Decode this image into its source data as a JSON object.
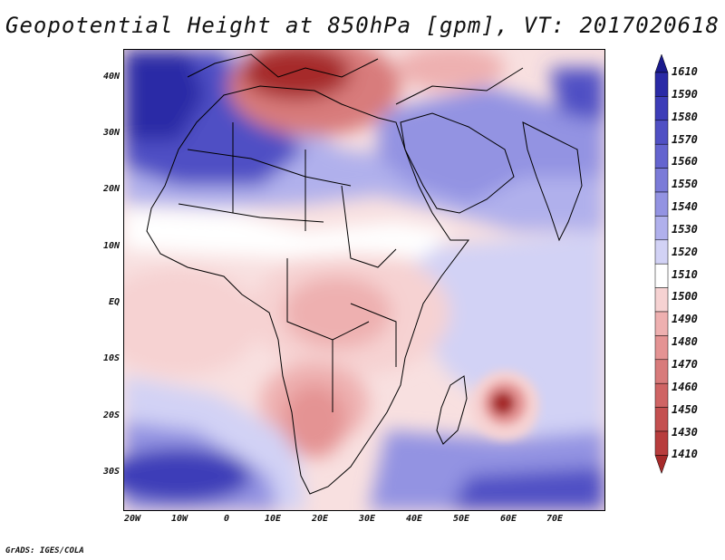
{
  "title": "Geopotential Height at 850hPa [gpm], VT: 2017020618",
  "credit": "GrADS: IGES/COLA",
  "latitude_labels": [
    "40N",
    "30N",
    "20N",
    "10N",
    "EQ",
    "10S",
    "20S",
    "30S"
  ],
  "longitude_labels": [
    "20W",
    "10W",
    "0",
    "10E",
    "20E",
    "30E",
    "40E",
    "50E",
    "60E",
    "70E"
  ],
  "colorbar": {
    "levels": [
      "1610",
      "1590",
      "1580",
      "1570",
      "1560",
      "1550",
      "1540",
      "1530",
      "1520",
      "1510",
      "1500",
      "1490",
      "1480",
      "1470",
      "1460",
      "1450",
      "1430",
      "1410"
    ],
    "colors": [
      "#1a1a8c",
      "#2a2aa6",
      "#3d3db8",
      "#5050c4",
      "#6464cf",
      "#7b7bd8",
      "#9393e2",
      "#b0b0ec",
      "#d2d2f5",
      "#ffffff",
      "#f6d2d2",
      "#eeb0b0",
      "#e49393",
      "#d87b7b",
      "#cf6464",
      "#c45050",
      "#b83d3d",
      "#a62a2a"
    ]
  },
  "colors": {
    "high": "#2a2aa6",
    "low": "#a62a2a",
    "neutral": "#ffffff"
  }
}
